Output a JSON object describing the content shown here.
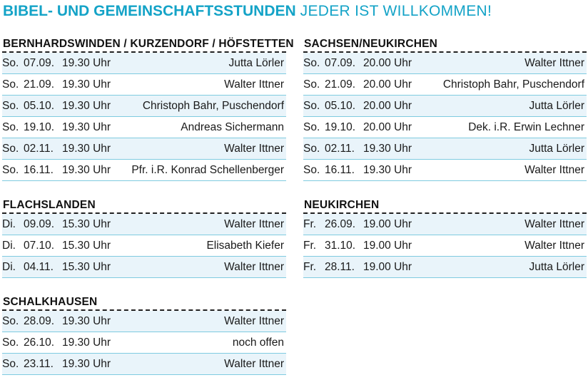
{
  "header": {
    "title": "BIBEL- UND GEMEINSCHAFTSSTUNDEN",
    "subtitle": "JEDER IST WILLKOMMEN!"
  },
  "sections": {
    "bernhardswinden": {
      "title": "BERNHARDSWINDEN / KURZENDORF / HÖFSTETTEN",
      "rows": [
        {
          "day": "So.",
          "date": "07.09.",
          "time": "19.30 Uhr",
          "name": "Jutta Lörler"
        },
        {
          "day": "So.",
          "date": "21.09.",
          "time": "19.30 Uhr",
          "name": "Walter Ittner"
        },
        {
          "day": "So.",
          "date": "05.10.",
          "time": "19.30 Uhr",
          "name": "Christoph Bahr, Puschendorf"
        },
        {
          "day": "So.",
          "date": "19.10.",
          "time": "19.30 Uhr",
          "name": "Andreas Sichermann"
        },
        {
          "day": "So.",
          "date": "02.11.",
          "time": "19.30 Uhr",
          "name": "Walter Ittner"
        },
        {
          "day": "So.",
          "date": "16.11.",
          "time": "19.30 Uhr",
          "name": "Pfr. i.R. Konrad Schellenberger"
        }
      ]
    },
    "sachsen": {
      "title": "SACHSEN/NEUKIRCHEN",
      "rows": [
        {
          "day": "So.",
          "date": "07.09.",
          "time": "20.00 Uhr",
          "name": "Walter Ittner"
        },
        {
          "day": "So.",
          "date": "21.09.",
          "time": "20.00 Uhr",
          "name": "Christoph Bahr, Puschendorf"
        },
        {
          "day": "So.",
          "date": "05.10.",
          "time": "20.00 Uhr",
          "name": "Jutta Lörler"
        },
        {
          "day": "So.",
          "date": "19.10.",
          "time": "20.00 Uhr",
          "name": "Dek. i.R. Erwin Lechner"
        },
        {
          "day": "So.",
          "date": "02.11.",
          "time": "19.30 Uhr",
          "name": "Jutta Lörler"
        },
        {
          "day": "So.",
          "date": "16.11.",
          "time": "19.30 Uhr",
          "name": "Walter Ittner"
        }
      ]
    },
    "flachslanden": {
      "title": "FLACHSLANDEN",
      "rows": [
        {
          "day": "Di.",
          "date": "09.09.",
          "time": "15.30 Uhr",
          "name": "Walter Ittner"
        },
        {
          "day": "Di.",
          "date": "07.10.",
          "time": "15.30 Uhr",
          "name": "Elisabeth Kiefer"
        },
        {
          "day": "Di.",
          "date": "04.11.",
          "time": "15.30 Uhr",
          "name": "Walter Ittner"
        }
      ]
    },
    "neukirchen": {
      "title": "NEUKIRCHEN",
      "rows": [
        {
          "day": "Fr.",
          "date": "26.09.",
          "time": "19.00 Uhr",
          "name": "Walter Ittner"
        },
        {
          "day": "Fr.",
          "date": "31.10.",
          "time": "19.00 Uhr",
          "name": "Walter Ittner"
        },
        {
          "day": "Fr.",
          "date": "28.11.",
          "time": "19.00 Uhr",
          "name": "Jutta Lörler"
        }
      ]
    },
    "schalkhausen": {
      "title": "SCHALKHAUSEN",
      "rows": [
        {
          "day": "So.",
          "date": "28.09.",
          "time": "19.30 Uhr",
          "name": "Walter Ittner"
        },
        {
          "day": "So.",
          "date": "26.10.",
          "time": "19.30 Uhr",
          "name": "noch offen"
        },
        {
          "day": "So.",
          "date": "23.11.",
          "time": "19.30 Uhr",
          "name": "Walter Ittner"
        }
      ]
    }
  },
  "colors": {
    "accent": "#14a3c7",
    "row_shade": "#e9f4fa",
    "row_rule": "#7fcbe0"
  }
}
